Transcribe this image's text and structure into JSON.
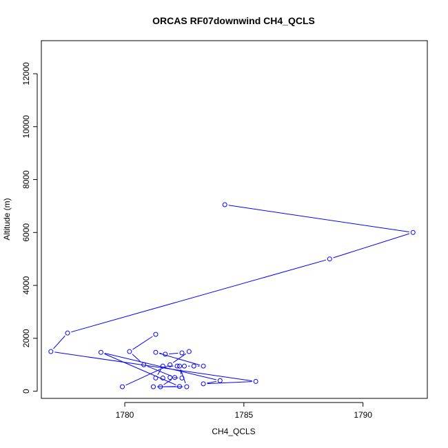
{
  "chart_data": {
    "type": "line",
    "title": "ORCAS RF07downwind CH4_QCLS",
    "xlabel": "CH4_QCLS",
    "ylabel": "Altitude (m)",
    "xlim": [
      1776.5,
      1792.7
    ],
    "ylim": [
      -270,
      13250
    ],
    "xticks": [
      1780,
      1785,
      1790
    ],
    "yticks": [
      0,
      2000,
      4000,
      6000,
      8000,
      10000,
      12000
    ],
    "grid": false,
    "markers": "open-circle",
    "color": "#0000ff",
    "series": [
      {
        "points": [
          {
            "x": 1784.2,
            "y": 7050
          },
          {
            "x": 1792.1,
            "y": 6000
          },
          {
            "x": 1788.6,
            "y": 5000
          },
          {
            "x": 1777.6,
            "y": 2200
          },
          {
            "x": 1776.9,
            "y": 1500
          },
          {
            "x": 1785.5,
            "y": 370
          },
          {
            "x": 1783.3,
            "y": 280
          },
          {
            "x": 1784.0,
            "y": 400
          },
          {
            "x": 1779.0,
            "y": 1470
          },
          {
            "x": 1782.3,
            "y": 180
          },
          {
            "x": 1781.5,
            "y": 170
          },
          {
            "x": 1782.1,
            "y": 520
          },
          {
            "x": 1780.8,
            "y": 1000
          },
          {
            "x": 1780.2,
            "y": 1500
          },
          {
            "x": 1781.3,
            "y": 2150
          }
        ]
      },
      {
        "points": [
          {
            "x": 1779.9,
            "y": 170
          },
          {
            "x": 1781.9,
            "y": 1000
          },
          {
            "x": 1782.7,
            "y": 1500
          },
          {
            "x": 1782.4,
            "y": 1450
          },
          {
            "x": 1781.7,
            "y": 1400
          },
          {
            "x": 1781.3,
            "y": 1470
          },
          {
            "x": 1783.3,
            "y": 950
          },
          {
            "x": 1782.9,
            "y": 950
          },
          {
            "x": 1782.5,
            "y": 950
          },
          {
            "x": 1782.2,
            "y": 950
          },
          {
            "x": 1781.6,
            "y": 950
          },
          {
            "x": 1781.3,
            "y": 500
          },
          {
            "x": 1781.6,
            "y": 500
          },
          {
            "x": 1781.9,
            "y": 520
          },
          {
            "x": 1782.4,
            "y": 500
          },
          {
            "x": 1782.3,
            "y": 950
          },
          {
            "x": 1782.6,
            "y": 170
          },
          {
            "x": 1781.2,
            "y": 170
          }
        ]
      }
    ]
  }
}
